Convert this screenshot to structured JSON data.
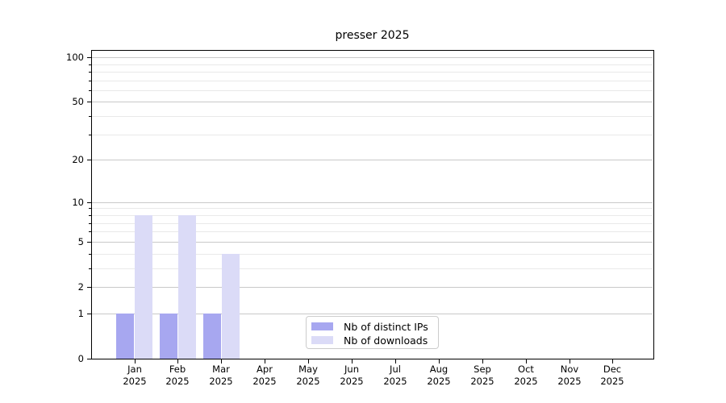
{
  "figure": {
    "background": "#ffffff"
  },
  "chart_data": {
    "type": "bar",
    "title": "presser 2025",
    "categories": [
      "Jan",
      "Feb",
      "Mar",
      "Apr",
      "May",
      "Jun",
      "Jul",
      "Aug",
      "Sep",
      "Oct",
      "Nov",
      "Dec"
    ],
    "year_label": "2025",
    "series": [
      {
        "name": "Nb of distinct IPs",
        "color": "#a7a7f0",
        "values": [
          1,
          1,
          1,
          0,
          0,
          0,
          0,
          0,
          0,
          0,
          0,
          0
        ]
      },
      {
        "name": "Nb of downloads",
        "color": "#dbdbf7",
        "values": [
          8,
          8,
          4,
          0,
          0,
          0,
          0,
          0,
          0,
          0,
          0,
          0
        ]
      }
    ],
    "yscale": "log1p",
    "ylim": [
      0,
      112
    ],
    "yticks": [
      {
        "value": 0,
        "label": "0"
      },
      {
        "value": 1,
        "label": "1"
      },
      {
        "value": 2,
        "label": "2"
      },
      {
        "value": 5,
        "label": "5"
      },
      {
        "value": 10,
        "label": "10"
      },
      {
        "value": 20,
        "label": "20"
      },
      {
        "value": 50,
        "label": "50"
      },
      {
        "value": 100,
        "label": "100"
      }
    ],
    "yticks_minor": [
      3,
      4,
      6,
      7,
      8,
      9,
      30,
      40,
      60,
      70,
      80,
      90
    ],
    "grid": {
      "horizontal": true,
      "vertical": false
    },
    "legend": {
      "position": "lower center"
    }
  },
  "colors": {
    "bar_distinct_ips": "#a7a7f0",
    "bar_downloads": "#dbdbf7",
    "grid_major": "#c9c9c9",
    "grid_minor": "#e9e9e9",
    "axis": "#000000",
    "text": "#000000",
    "legend_border": "#cccccc",
    "legend_background": "#ffffff"
  }
}
